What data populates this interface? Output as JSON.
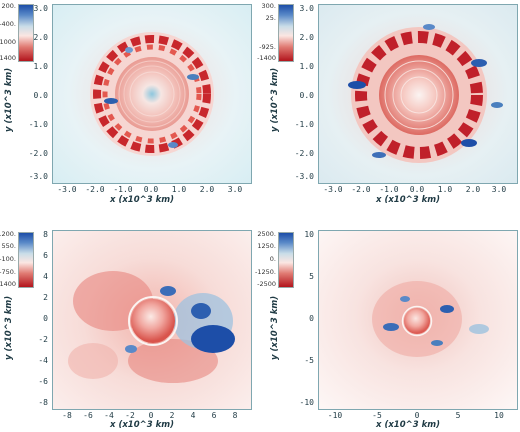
{
  "colorbars": [
    {
      "labels": [
        "200.",
        "-400.",
        "-1000",
        "-1400"
      ]
    },
    {
      "labels": [
        "300.",
        "25.",
        "-925.",
        "-1400"
      ]
    },
    {
      "labels": [
        "1200.",
        "550.",
        "-100.",
        "-750.",
        "-1400"
      ]
    },
    {
      "labels": [
        "2500.",
        "1250.",
        "0.",
        "-1250.",
        "-2500"
      ]
    }
  ],
  "panels": [
    {
      "xlabel": "x (x10^3 km)",
      "ylabel": "y (x10^3 km)",
      "xticks": [
        "-3.0",
        "-2.0",
        "-1.0",
        "0.0",
        "1.0",
        "2.0",
        "3.0"
      ],
      "yticks": [
        "3.0",
        "2.0",
        "1.0",
        "0.0",
        "-1.0",
        "-2.0",
        "-3.0"
      ]
    },
    {
      "xlabel": "x (x10^3 km)",
      "ylabel": "y (x10^3 km)",
      "xticks": [
        "-3.0",
        "-2.0",
        "-1.0",
        "0.0",
        "1.0",
        "2.0",
        "3.0"
      ],
      "yticks": [
        "3.0",
        "2.0",
        "1.0",
        "0.0",
        "-1.0",
        "-2.0",
        "-3.0"
      ]
    },
    {
      "xlabel": "x (x10^3 km)",
      "ylabel": "y (x10^3 km)",
      "xticks": [
        "-8",
        "-6",
        "-4",
        "-2",
        "0",
        "2",
        "4",
        "6",
        "8"
      ],
      "yticks": [
        "8",
        "6",
        "4",
        "2",
        "0",
        "-2",
        "-4",
        "-6",
        "-8"
      ]
    },
    {
      "xlabel": "x (x10^3 km)",
      "ylabel": "y (x10^3 km)",
      "xticks": [
        "-10",
        "-5",
        "0",
        "5",
        "10"
      ],
      "yticks": [
        "10",
        "5",
        "0",
        "-5",
        "-10"
      ]
    }
  ],
  "colors": {
    "blue": "#1d4ea8",
    "red": "#b2141c",
    "white": "#fbf4f2"
  }
}
